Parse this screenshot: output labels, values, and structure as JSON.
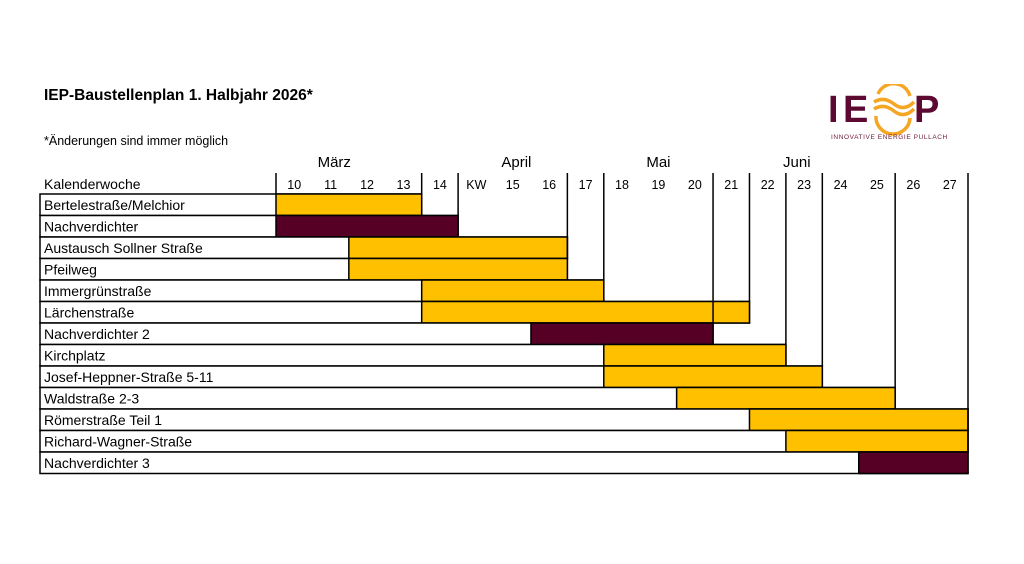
{
  "title": "IEP-Baustellenplan 1. Halbjahr 2026*",
  "note": "*Änderungen sind immer möglich",
  "logo": {
    "text": "IEP",
    "tagline": "INNOVATIVE ENERGIE PULLACH",
    "colors": {
      "letters": "#5C0A32",
      "wave": "#F5A623"
    }
  },
  "chart_data": {
    "type": "gantt",
    "row_header": "Kalenderwoche",
    "columns": [
      "10",
      "11",
      "12",
      "13",
      "14",
      "KW",
      "15",
      "16",
      "17",
      "18",
      "19",
      "20",
      "21",
      "22",
      "23",
      "24",
      "25",
      "26",
      "27"
    ],
    "months": [
      "März",
      "April",
      "Mai",
      "Juni"
    ],
    "colors": {
      "construction": "#FFC000",
      "densification": "#560026"
    },
    "tasks": [
      {
        "name": "Bertelestraße/Melchior",
        "start": "10",
        "end": "13",
        "color": "#FFC000"
      },
      {
        "name": "Nachverdichter",
        "start": "10",
        "end": "14",
        "color": "#560026"
      },
      {
        "name": "Austausch Sollner Straße",
        "start": "12",
        "end": "16",
        "color": "#FFC000"
      },
      {
        "name": "Pfeilweg",
        "start": "12",
        "end": "16",
        "color": "#FFC000"
      },
      {
        "name": "Immergrünstraße",
        "start": "14",
        "end": "17",
        "color": "#FFC000"
      },
      {
        "name": "Lärchenstraße",
        "start": "14",
        "end": "21",
        "color": "#FFC000"
      },
      {
        "name": "Nachverdichter 2",
        "start": "16",
        "end": "20",
        "color": "#560026"
      },
      {
        "name": "Kirchplatz",
        "start": "18",
        "end": "22",
        "color": "#FFC000"
      },
      {
        "name": "Josef-Heppner-Straße 5-11",
        "start": "18",
        "end": "23",
        "color": "#FFC000"
      },
      {
        "name": "Waldstraße 2-3",
        "start": "20",
        "end": "25",
        "color": "#FFC000"
      },
      {
        "name": "Römerstraße Teil 1",
        "start": "22",
        "end": "27",
        "color": "#FFC000"
      },
      {
        "name": "Richard-Wagner-Straße",
        "start": "23",
        "end": "27",
        "color": "#FFC000"
      },
      {
        "name": "Nachverdichter 3",
        "start": "25",
        "end": "27",
        "color": "#560026"
      }
    ]
  }
}
